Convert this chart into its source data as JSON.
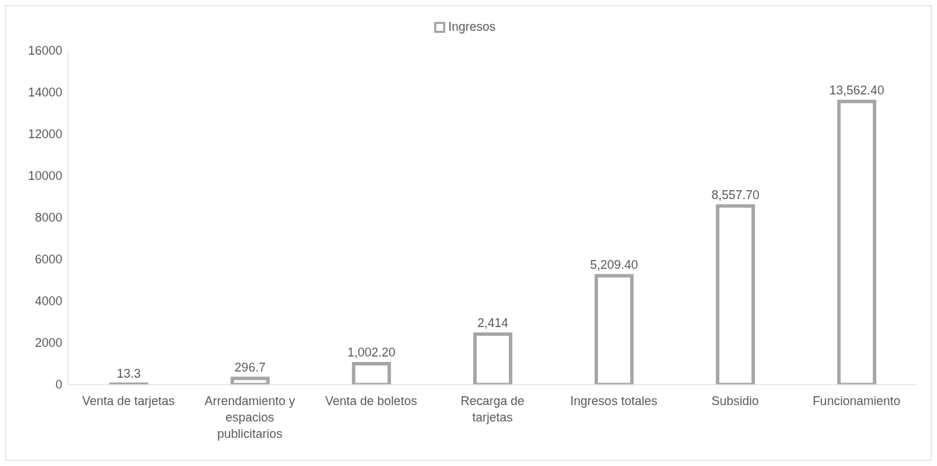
{
  "chart_data": {
    "type": "bar",
    "categories": [
      "Venta de tarjetas",
      "Arrendamiento y espacios publicitarios",
      "Venta de boletos",
      "Recarga de tarjetas",
      "Ingresos totales",
      "Subsidio",
      "Funcionamiento"
    ],
    "series": [
      {
        "name": "Ingresos",
        "color": "#a5a5a5",
        "values": [
          13.3,
          296.7,
          1002.2,
          2414,
          5209.4,
          8557.7,
          13562.4
        ],
        "value_labels": [
          "13.3",
          "296.7",
          "1,002.20",
          "2,414",
          "5,209.40",
          "8,557.70",
          "13,562.40"
        ]
      }
    ],
    "ylim": [
      0,
      16000
    ],
    "yticks": [
      0,
      2000,
      4000,
      6000,
      8000,
      10000,
      12000,
      14000,
      16000
    ],
    "grid": false,
    "legend": "top"
  }
}
